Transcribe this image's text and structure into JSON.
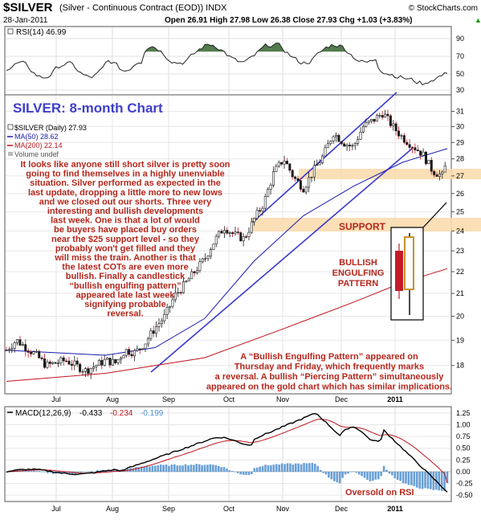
{
  "header": {
    "symbol": "$SILVER",
    "description": "(Silver - Continuous Contract (EOD)) INDX",
    "source": "© StockCharts.com",
    "date": "28-Jan-2011",
    "quote": "Open 26.91  High 27.98  Low 26.38  Close 27.93  Chg +1.03 (+3.83%)",
    "quote_arrow": "▲"
  },
  "rsi_panel": {
    "label": "RSI(14) 46.99",
    "ticks": [
      "90",
      "70",
      "50",
      "30"
    ]
  },
  "price_panel": {
    "chart_title": "SILVER: 8-month Chart",
    "legend": [
      {
        "text": "$SILVER (Daily) 27.93",
        "color": "#000000"
      },
      {
        "text": "MA(50) 28.62",
        "color": "#1a1ab0"
      },
      {
        "text": "MA(200) 22.14",
        "color": "#c0141c"
      },
      {
        "text": "Volume undef",
        "color": "#888888"
      }
    ],
    "ticks": [
      "31",
      "30",
      "29",
      "28",
      "27",
      "26",
      "25",
      "24",
      "23",
      "22",
      "21",
      "20",
      "19",
      "18"
    ],
    "commentary": [
      "It looks like anyone still short silver is pretty soon",
      "going to find themselves in a highly unenviable",
      "situation. Silver performed as expected in the",
      "last update, dropping a little more to new lows",
      "and we closed out our shorts. Three very",
      "interesting and bullish developments",
      "last week. One is that a lot of would",
      "be buyers have placed buy orders",
      "near the $25 support level - so they",
      "probably won't get filled and they",
      "will miss the train. Another is that",
      "the latest COTs are even more",
      "bullish. Finally a candlestick",
      "“bullish engulfing pattern”",
      "appeared late last week",
      "signifying probable",
      "reversal."
    ],
    "support_label": "SUPPORT",
    "pattern_label": [
      "BULLISH",
      "ENGULFING",
      "PATTERN"
    ],
    "bottom_note": [
      "A “Bullish Engulfing Pattern” appeared on",
      "Thursday and Friday, which frequently marks",
      "a reversal. A bullish “Piercing Pattern” simultaneously",
      "appeared on the gold chart which has similar implications."
    ]
  },
  "macd_panel": {
    "label_prefix": "MACD(12,26,9)",
    "macd_value": "-0.433",
    "signal_value": "-0.234",
    "hist_value": "-0.199",
    "ticks": [
      "1.25",
      "1.00",
      "0.75",
      "0.50",
      "0.25",
      "0.00",
      "-0.25",
      "-0.50"
    ],
    "annotation": "Oversold on RSI"
  },
  "months": [
    "Jul",
    "Aug",
    "Sep",
    "Oct",
    "Nov",
    "Dec",
    "2011"
  ],
  "colors": {
    "highlight": "#fbdcae",
    "annotation": "#b5271c",
    "title": "#3f3fcc",
    "candle_up": "#1a1a1a",
    "ma50": "#1a1ab0",
    "ma200": "#c0141c",
    "hist": "#4f8fcf",
    "rsi_fill": "#3f6e3a"
  },
  "chart_data": {
    "type": "line",
    "title": "SILVER: 8-month Chart",
    "x_ticks": [
      "Jul",
      "Aug",
      "Sep",
      "Oct",
      "Nov",
      "Dec",
      "2011"
    ],
    "ylim": [
      17,
      32
    ],
    "y_scale": "log",
    "series": [
      {
        "name": "$SILVER (Daily)",
        "values": [
          [
            0,
            18.6
          ],
          [
            4,
            19.0
          ],
          [
            8,
            18.7
          ],
          [
            12,
            18.4
          ],
          [
            16,
            18.0
          ],
          [
            20,
            18.1
          ],
          [
            24,
            18.2
          ],
          [
            28,
            18.0
          ],
          [
            32,
            17.8
          ],
          [
            36,
            18.0
          ],
          [
            40,
            18.2
          ],
          [
            44,
            18.1
          ],
          [
            48,
            18.6
          ],
          [
            52,
            18.5
          ],
          [
            56,
            18.9
          ],
          [
            60,
            19.5
          ],
          [
            64,
            20.0
          ],
          [
            68,
            20.9
          ],
          [
            72,
            21.4
          ],
          [
            76,
            22.0
          ],
          [
            80,
            22.6
          ],
          [
            84,
            23.5
          ],
          [
            88,
            24.2
          ],
          [
            92,
            23.8
          ],
          [
            96,
            23.6
          ],
          [
            100,
            24.6
          ],
          [
            104,
            25.5
          ],
          [
            108,
            27.2
          ],
          [
            112,
            28.0
          ],
          [
            116,
            26.9
          ],
          [
            120,
            26.3
          ],
          [
            124,
            27.3
          ],
          [
            128,
            28.2
          ],
          [
            132,
            29.6
          ],
          [
            136,
            29.0
          ],
          [
            140,
            28.7
          ],
          [
            144,
            30.0
          ],
          [
            148,
            30.4
          ],
          [
            152,
            30.9
          ],
          [
            156,
            30.0
          ],
          [
            160,
            29.3
          ],
          [
            164,
            28.8
          ],
          [
            168,
            28.3
          ],
          [
            172,
            27.3
          ],
          [
            176,
            27.0
          ],
          [
            178,
            27.93
          ]
        ]
      },
      {
        "name": "MA(50)",
        "values": [
          [
            0,
            18.6
          ],
          [
            40,
            18.4
          ],
          [
            60,
            18.7
          ],
          [
            80,
            19.9
          ],
          [
            100,
            22.5
          ],
          [
            120,
            24.8
          ],
          [
            140,
            26.4
          ],
          [
            160,
            27.8
          ],
          [
            178,
            28.62
          ]
        ]
      },
      {
        "name": "MA(200)",
        "values": [
          [
            0,
            17.4
          ],
          [
            40,
            17.7
          ],
          [
            80,
            18.3
          ],
          [
            110,
            19.4
          ],
          [
            140,
            20.6
          ],
          [
            160,
            21.5
          ],
          [
            178,
            22.14
          ]
        ]
      }
    ],
    "rsi": {
      "label": "RSI(14) 46.99",
      "ylim": [
        25,
        95
      ],
      "last": 46.99
    },
    "macd": {
      "macd": -0.433,
      "signal": -0.234,
      "histogram": -0.199,
      "ylim": [
        -0.6,
        1.35
      ]
    }
  }
}
